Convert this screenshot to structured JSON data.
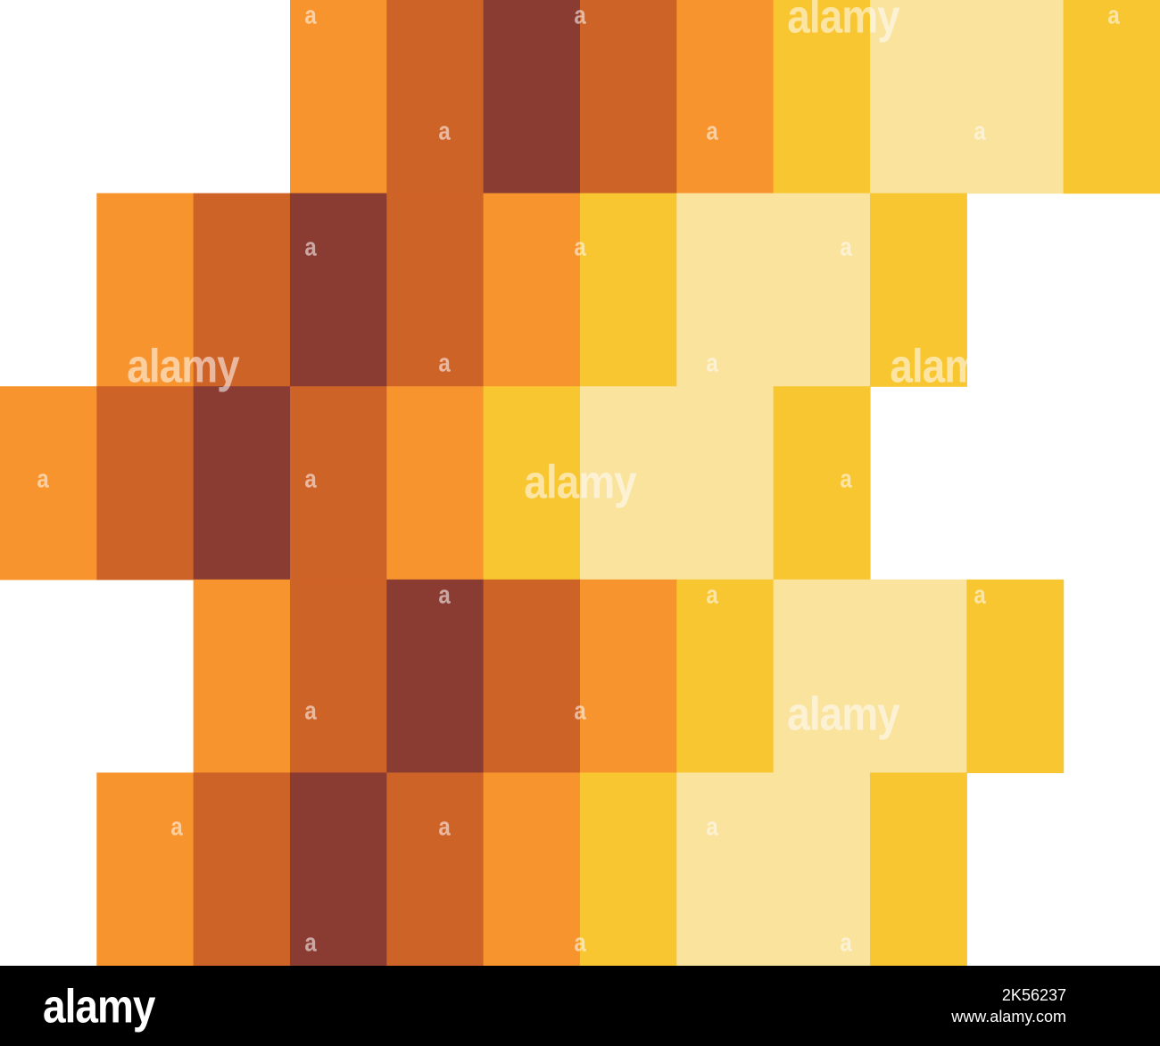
{
  "colors": {
    "orange": "#F7942D",
    "rust": "#CE6328",
    "maroon": "#8A3C33",
    "yellow": "#F8C631",
    "cream": "#F9E39D",
    "footer_bg": "#000000"
  },
  "pixel_rows": [
    [
      "empty",
      "empty",
      "empty",
      "orange",
      "rust",
      "maroon",
      "rust",
      "orange",
      "yellow",
      "cream",
      "cream",
      "yellow"
    ],
    [
      "empty",
      "orange",
      "rust",
      "maroon",
      "rust",
      "orange",
      "yellow",
      "cream",
      "cream",
      "yellow",
      "empty",
      "empty"
    ],
    [
      "orange",
      "rust",
      "maroon",
      "rust",
      "orange",
      "yellow",
      "cream",
      "cream",
      "yellow",
      "empty",
      "empty",
      "empty"
    ],
    [
      "empty",
      "empty",
      "orange",
      "rust",
      "maroon",
      "rust",
      "orange",
      "yellow",
      "cream",
      "cream",
      "yellow",
      "empty"
    ],
    [
      "empty",
      "orange",
      "rust",
      "maroon",
      "rust",
      "orange",
      "yellow",
      "cream",
      "cream",
      "yellow",
      "empty",
      "empty"
    ]
  ],
  "watermark": {
    "word": "alamy",
    "letter": "a"
  },
  "footer": {
    "logo": "alamy",
    "image_id": "2K56237",
    "site": "www.alamy.com"
  }
}
